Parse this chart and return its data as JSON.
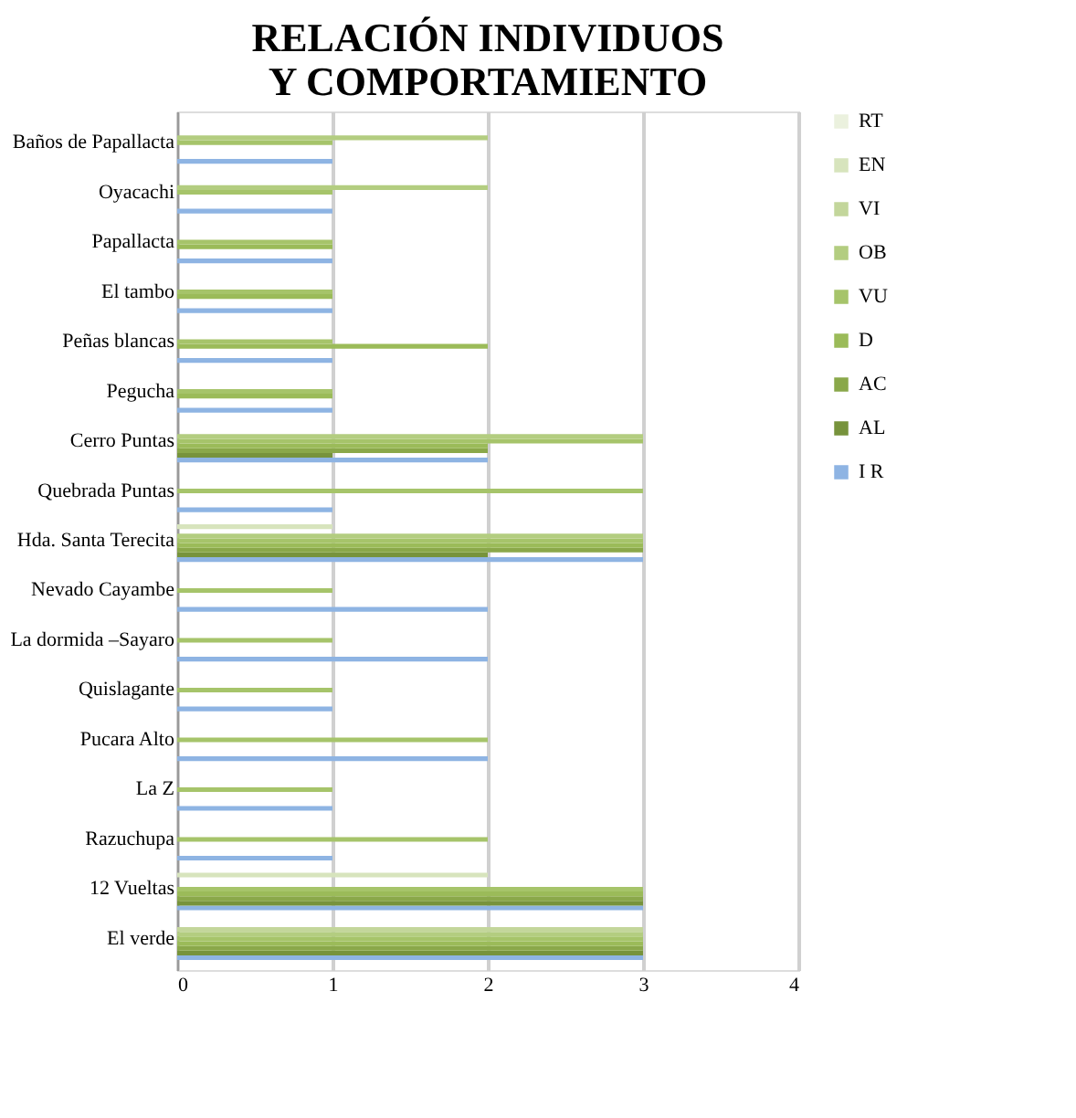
{
  "chart_data": {
    "type": "bar",
    "orientation": "horizontal",
    "title": "RELACIÓN INDIVIDUOS Y COMPORTAMIENTO",
    "categories": [
      "Baños de Papallacta",
      "Oyacachi",
      "Papallacta",
      "El tambo",
      "Peñas blancas",
      "Pegucha",
      "Cerro Puntas",
      "Quebrada Puntas",
      "Hda. Santa Terecita",
      "Nevado Cayambe",
      "La dormida –Sayaro",
      "Quislagante",
      "Pucara Alto",
      "La Z",
      "Razuchupa",
      "12 Vueltas",
      "El verde"
    ],
    "series": [
      {
        "name": "I R",
        "color": "#8eb4e3",
        "values": [
          1,
          1,
          1,
          1,
          1,
          1,
          2,
          1,
          3,
          2,
          2,
          1,
          2,
          1,
          1,
          3,
          3
        ]
      },
      {
        "name": "AL",
        "color": "#77933c",
        "values": [
          null,
          null,
          null,
          null,
          null,
          null,
          1,
          null,
          2,
          null,
          null,
          null,
          null,
          null,
          null,
          3,
          3
        ]
      },
      {
        "name": "AC",
        "color": "#8aa84a",
        "values": [
          null,
          null,
          null,
          null,
          null,
          null,
          2,
          null,
          3,
          null,
          null,
          null,
          null,
          null,
          null,
          3,
          3
        ]
      },
      {
        "name": "D",
        "color": "#9bbb59",
        "values": [
          null,
          null,
          1,
          1,
          2,
          1,
          2,
          null,
          3,
          null,
          null,
          null,
          null,
          null,
          null,
          3,
          3
        ]
      },
      {
        "name": "VU",
        "color": "#a6c46a",
        "values": [
          1,
          1,
          1,
          1,
          1,
          1,
          3,
          3,
          3,
          1,
          1,
          1,
          2,
          1,
          2,
          3,
          3
        ]
      },
      {
        "name": "OB",
        "color": "#b3cd80",
        "values": [
          2,
          2,
          null,
          null,
          null,
          null,
          3,
          null,
          3,
          null,
          null,
          null,
          null,
          null,
          null,
          null,
          3
        ]
      },
      {
        "name": "VI",
        "color": "#c3d69b",
        "values": [
          null,
          null,
          null,
          null,
          null,
          null,
          null,
          null,
          null,
          null,
          null,
          null,
          null,
          null,
          null,
          null,
          3
        ]
      },
      {
        "name": "EN",
        "color": "#d7e4bd",
        "values": [
          null,
          null,
          null,
          null,
          null,
          null,
          null,
          null,
          1,
          null,
          null,
          null,
          null,
          null,
          null,
          2,
          null
        ]
      },
      {
        "name": "RT",
        "color": "#ebf1de",
        "values": [
          null,
          null,
          null,
          null,
          null,
          null,
          null,
          null,
          null,
          null,
          null,
          null,
          null,
          null,
          null,
          null,
          null
        ]
      }
    ],
    "xlim": [
      0,
      4
    ],
    "xticks": [
      0,
      1,
      2,
      3,
      4
    ],
    "grid": "x",
    "legend": "right"
  }
}
